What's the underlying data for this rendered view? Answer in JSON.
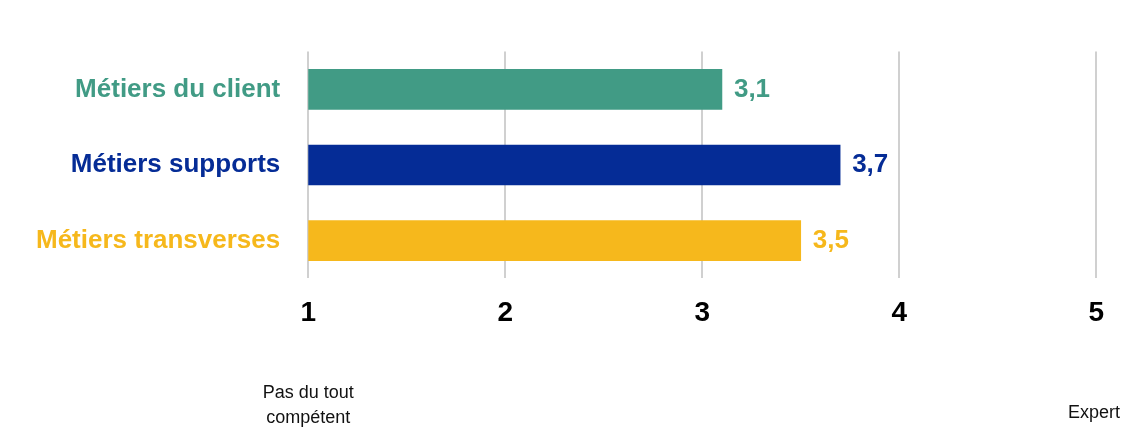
{
  "chart_data": {
    "type": "bar",
    "orientation": "horizontal",
    "categories": [
      "Métiers du client",
      "Métiers supports",
      "Métiers transverses"
    ],
    "values": [
      3.1,
      3.7,
      3.5
    ],
    "colors": [
      "#419b85",
      "#052c96",
      "#f6b81c"
    ],
    "value_labels": [
      "3,1",
      "3,7",
      "3,5"
    ],
    "xlim": [
      1,
      5
    ],
    "xticks": [
      1,
      2,
      3,
      4,
      5
    ],
    "grid": "x",
    "legend": false,
    "annotations": [
      "Pas du tout compétent",
      "Expert"
    ]
  }
}
